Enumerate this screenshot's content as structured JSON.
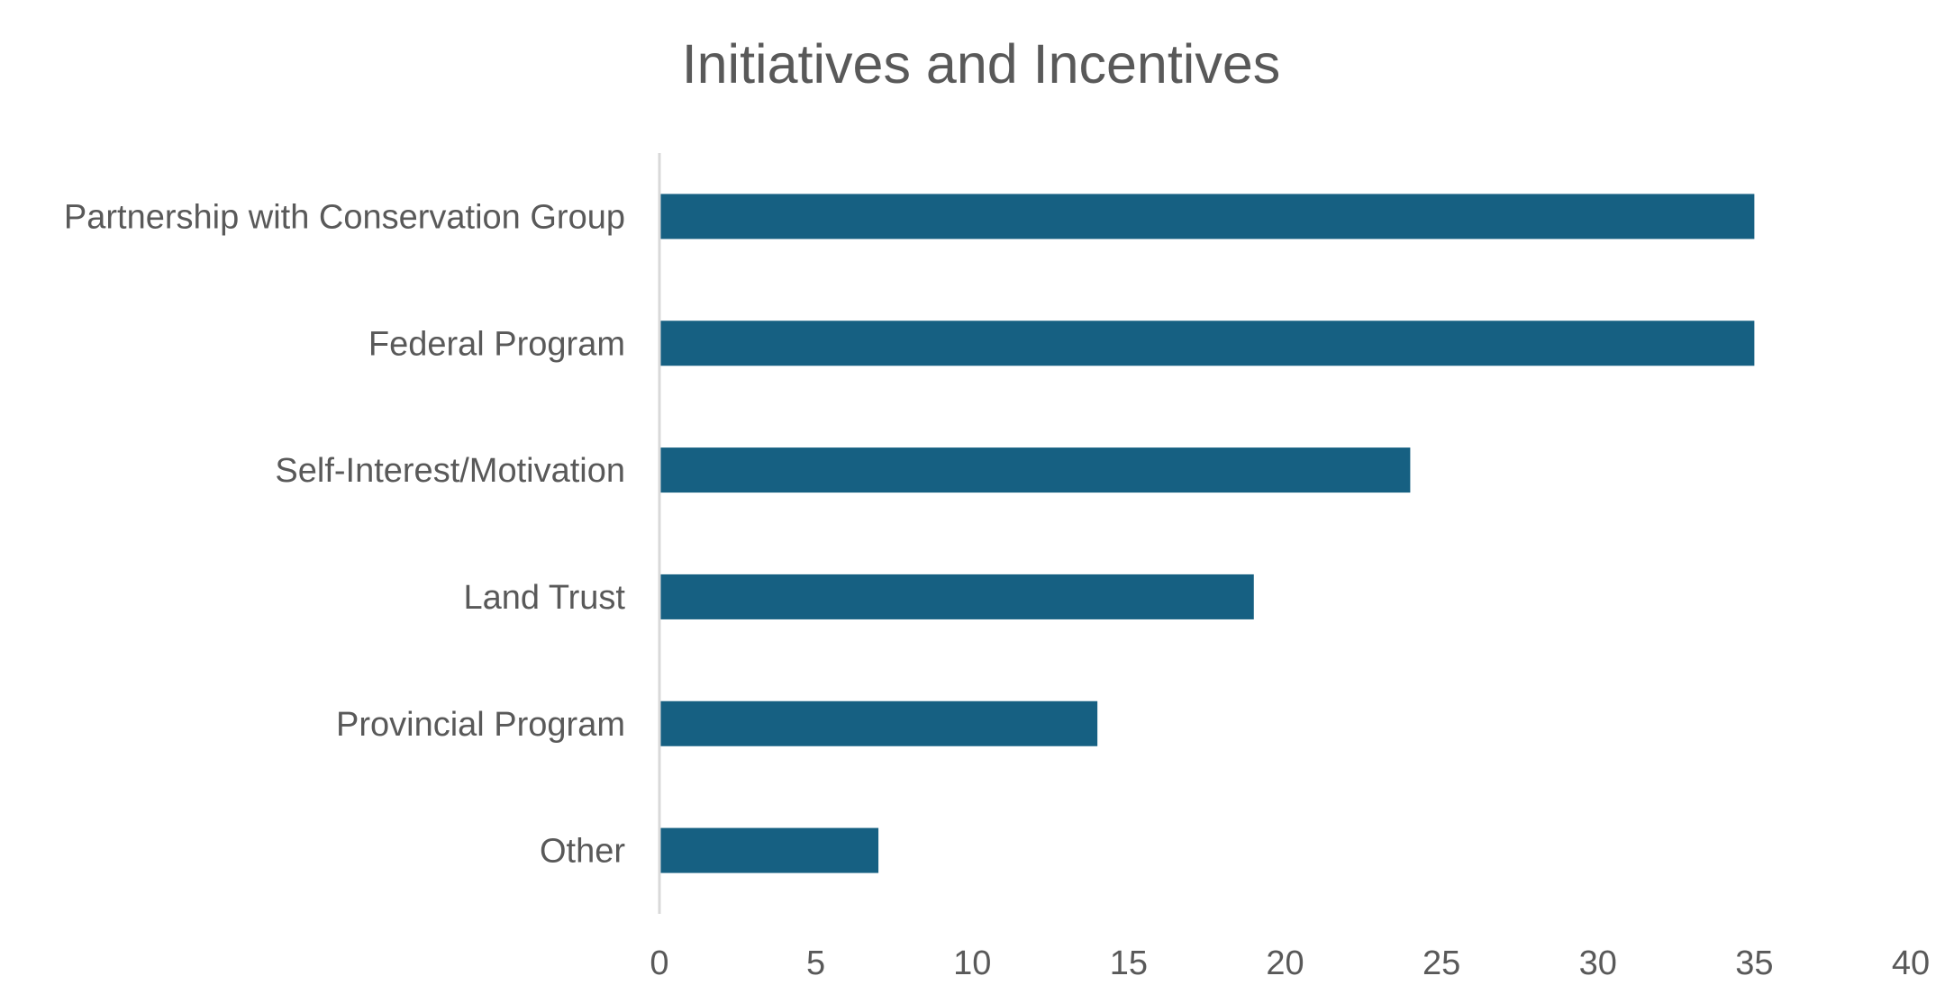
{
  "chart_data": {
    "type": "bar",
    "orientation": "horizontal",
    "title": "Initiatives and Incentives",
    "xlabel": "",
    "ylabel": "",
    "categories": [
      "Partnership with Conservation Group",
      "Federal Program",
      "Self-Interest/Motivation",
      "Land Trust",
      "Provincial Program",
      "Other"
    ],
    "values": [
      35,
      35,
      24,
      19,
      14,
      7
    ],
    "xlim": [
      0,
      40
    ],
    "ticks": [
      "0",
      "5",
      "10",
      "15",
      "20",
      "25",
      "30",
      "35",
      "40"
    ],
    "grid": false,
    "legend": "none",
    "colors": {
      "bar": "#166082",
      "text": "#595959",
      "axis": "#d9d9d9"
    }
  }
}
